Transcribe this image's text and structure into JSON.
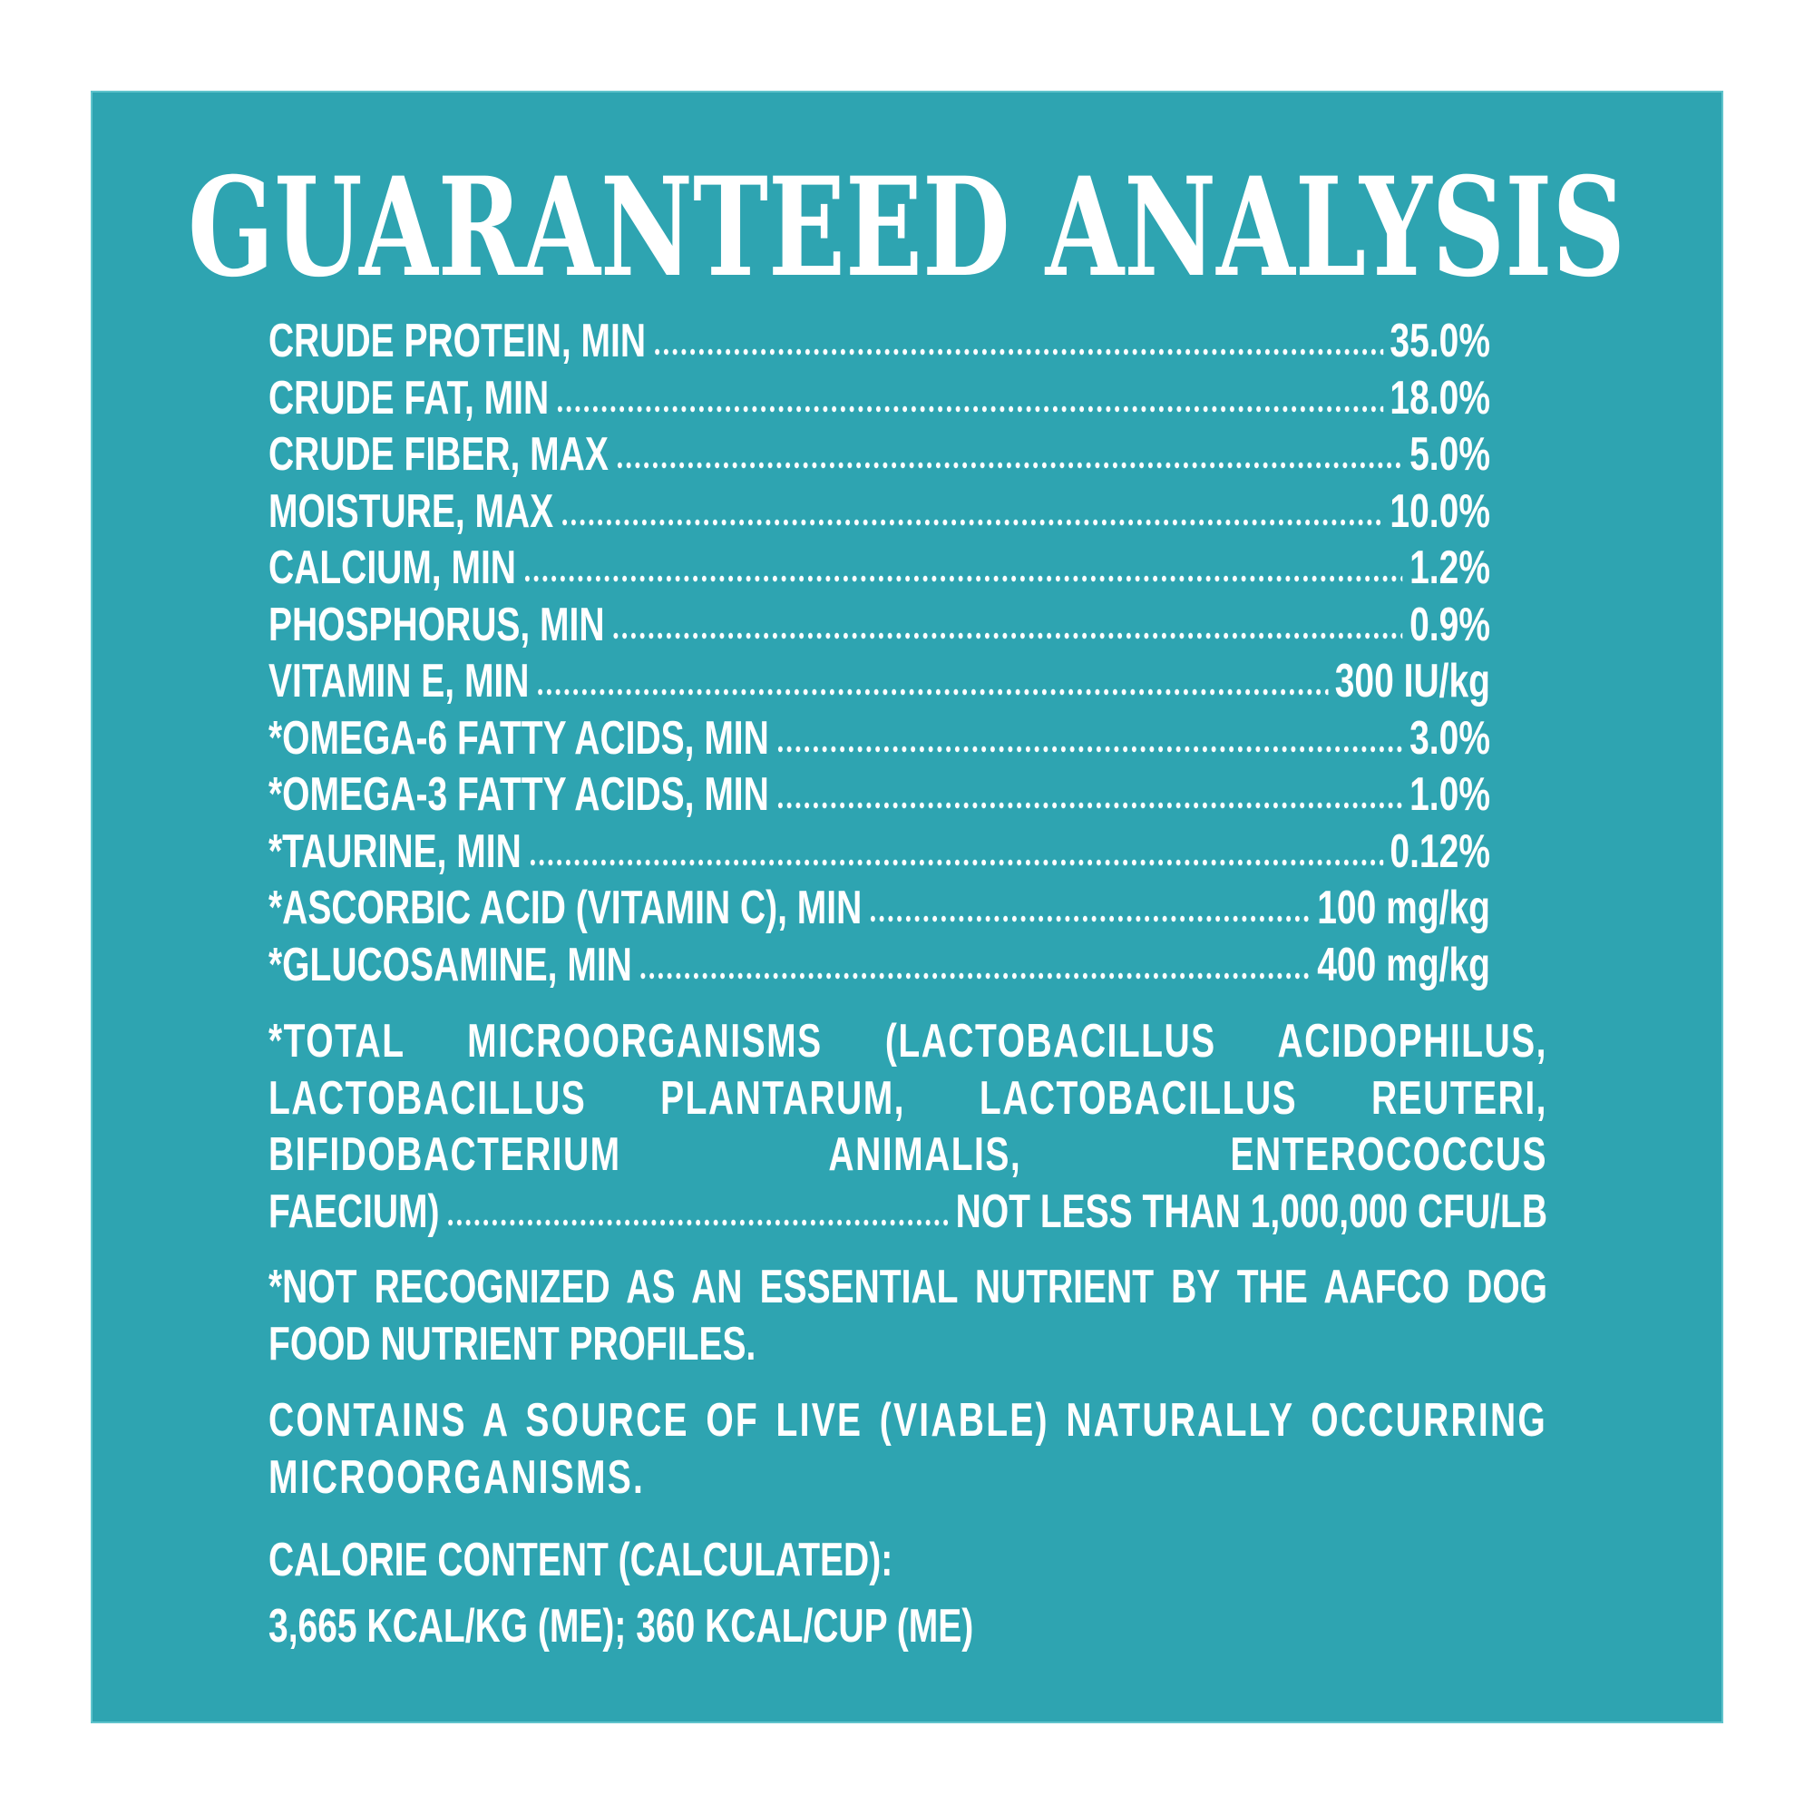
{
  "title": "GUARANTEED ANALYSIS",
  "analysis": [
    {
      "label": "CRUDE PROTEIN, MIN",
      "value": "35.0%"
    },
    {
      "label": "CRUDE FAT, MIN",
      "value": "18.0%"
    },
    {
      "label": "CRUDE FIBER, MAX",
      "value": "5.0%"
    },
    {
      "label": "MOISTURE, MAX",
      "value": "10.0%"
    },
    {
      "label": "CALCIUM, MIN",
      "value": "1.2%"
    },
    {
      "label": "PHOSPHORUS, MIN",
      "value": "0.9%"
    },
    {
      "label": "VITAMIN E, MIN",
      "value": "300 IU/kg"
    },
    {
      "label": "*OMEGA-6 FATTY ACIDS, MIN",
      "value": "3.0%"
    },
    {
      "label": "*OMEGA-3 FATTY ACIDS, MIN",
      "value": "1.0%"
    },
    {
      "label": "*TAURINE, MIN",
      "value": "0.12%"
    },
    {
      "label": "*ASCORBIC ACID (VITAMIN C), MIN",
      "value": "100 mg/kg"
    },
    {
      "label": "*GLUCOSAMINE, MIN",
      "value": "400 mg/kg"
    }
  ],
  "microorganisms": {
    "text": "*TOTAL MICROORGANISMS (LACTOBACILLUS ACIDOPHILUS, LACTOBACILLUS PLANTARUM, LACTOBACILLUS REUTERI, BIFIDOBACTERIUM ANIMALIS, ENTEROCOCCUS",
    "last_line": "FAECIUM)",
    "value": "NOT LESS THAN 1,000,000 CFU/LB"
  },
  "footnote": "*NOT RECOGNIZED AS AN ESSENTIAL NUTRIENT BY THE AAFCO DOG FOOD NUTRIENT PROFILES.",
  "live_statement": "CONTAINS A SOURCE OF LIVE (VIABLE) NATURALLY OCCURRING MICROORGANISMS.",
  "calorie_heading": "CALORIE CONTENT (CALCULATED):",
  "calorie_values": "3,665 KCAL/KG (ME); 360 KCAL/CUP (ME)"
}
